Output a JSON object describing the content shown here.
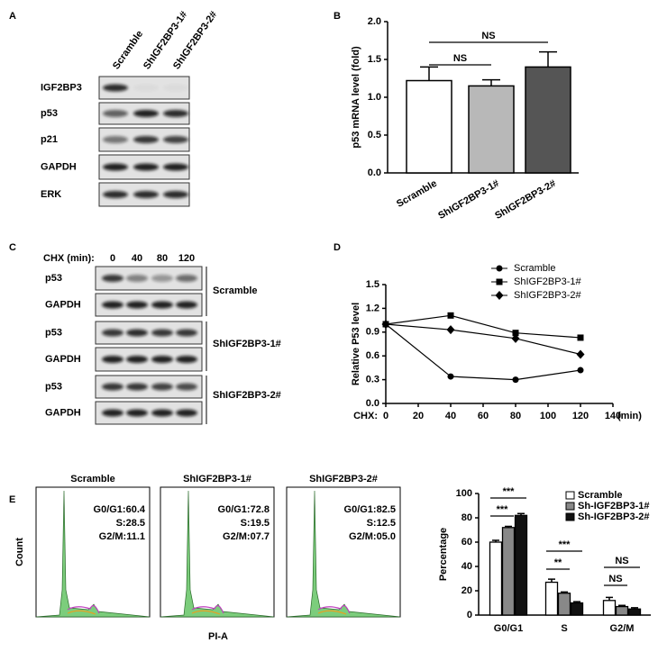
{
  "panel_labels": [
    "A",
    "B",
    "C",
    "D",
    "E"
  ],
  "blot_a": {
    "lanes": [
      "Scramble",
      "ShIGF2BP3-1#",
      "ShIGF2BP3-2#"
    ],
    "rows": [
      "IGF2BP3",
      "p53",
      "p21",
      "GAPDH",
      "ERK"
    ]
  },
  "blot_c": {
    "time_label": "CHX (min):",
    "times": [
      "0",
      "40",
      "80",
      "120"
    ],
    "rows": [
      "p53",
      "GAPDH",
      "p53",
      "GAPDH",
      "p53",
      "GAPDH"
    ],
    "groups": [
      "Scramble",
      "ShIGF2BP3-1#",
      "ShIGF2BP3-2#"
    ]
  },
  "flow": {
    "panels": [
      {
        "title": "Scramble",
        "stats": [
          "G0/G1:60.4",
          "S:28.5",
          "G2/M:11.1"
        ]
      },
      {
        "title": "ShIGF2BP3-1#",
        "stats": [
          "G0/G1:72.8",
          "S:19.5",
          "G2/M:07.7"
        ]
      },
      {
        "title": "ShIGF2BP3-2#",
        "stats": [
          "G0/G1:82.5",
          "S:12.5",
          "G2/M:05.0"
        ]
      }
    ],
    "x_label": "PI-A",
    "y_label": "Count"
  },
  "chart_data": [
    {
      "type": "bar",
      "y_label": "p53 mRNA level (fold)",
      "categories": [
        "Scramble",
        "ShIGF2BP3-1#",
        "ShIGF2BP3-2#"
      ],
      "values": [
        1.22,
        1.15,
        1.4
      ],
      "errors": [
        0.18,
        0.08,
        0.2
      ],
      "colors": [
        "#ffffff",
        "#b8b8b8",
        "#555555"
      ],
      "ylim": [
        0,
        2
      ],
      "yticks": [
        {
          "value": 0,
          "label": "0.0"
        },
        0.5,
        {
          "value": 1,
          "label": "1.0"
        },
        1.5,
        {
          "value": 2,
          "label": "2.0"
        }
      ],
      "annotations": [
        "NS",
        "NS"
      ]
    },
    {
      "type": "line",
      "y_label": "Relative P53 level",
      "x_prefix": "CHX:",
      "x_unit": "(min)",
      "x": [
        0,
        40,
        80,
        120
      ],
      "series": [
        {
          "name": "Scramble",
          "marker": "circle",
          "color": "#000000",
          "values": [
            1.0,
            0.34,
            0.3,
            0.42
          ]
        },
        {
          "name": "ShIGF2BP3-1#",
          "marker": "square",
          "color": "#000000",
          "values": [
            1.0,
            1.11,
            0.89,
            0.83
          ]
        },
        {
          "name": "ShIGF2BP3-2#",
          "marker": "diamond",
          "color": "#000000",
          "values": [
            1.0,
            0.93,
            0.82,
            0.62
          ]
        }
      ],
      "xlim": [
        0,
        140
      ],
      "xticks": [
        0,
        20,
        40,
        60,
        80,
        100,
        120,
        140
      ],
      "ylim": [
        0,
        1.5
      ],
      "yticks": [
        {
          "value": 0,
          "label": "0.0"
        },
        0.3,
        0.6,
        0.9,
        1.2,
        1.5
      ]
    },
    {
      "type": "bar",
      "y_label": "Percentage",
      "categories": [
        "G0/G1",
        "S",
        "G2/M"
      ],
      "series": [
        {
          "name": "Scramble",
          "color": "#ffffff",
          "values": [
            60,
            27,
            12
          ],
          "errors": [
            1.5,
            2.5,
            2.5
          ]
        },
        {
          "name": "Sh-IGF2BP3-1#",
          "color": "#888888",
          "values": [
            72,
            18,
            7
          ],
          "errors": [
            1,
            1,
            1
          ]
        },
        {
          "name": "Sh-IGF2BP3-2#",
          "color": "#111111",
          "values": [
            82,
            10,
            5
          ],
          "errors": [
            1.5,
            1,
            1
          ]
        }
      ],
      "ylim": [
        0,
        100
      ],
      "yticks": [
        0,
        20,
        40,
        60,
        80,
        100
      ],
      "annotations": [
        "***",
        "***",
        "**",
        "***",
        "NS",
        "NS"
      ]
    }
  ]
}
